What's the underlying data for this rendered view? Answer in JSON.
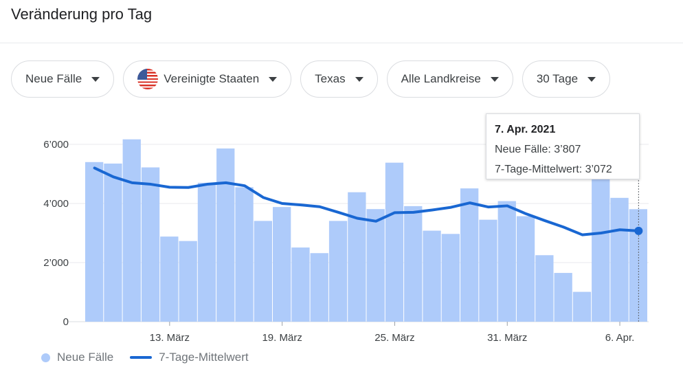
{
  "header": {
    "title": "Veränderung pro Tag"
  },
  "filters": [
    {
      "label": "Neue Fälle",
      "icon": "chevron-down-icon"
    },
    {
      "label": "Vereinigte Staaten",
      "icon": "us-flag-icon"
    },
    {
      "label": "Texas",
      "icon": "chevron-down-icon"
    },
    {
      "label": "Alle Landkreise",
      "icon": "chevron-down-icon"
    },
    {
      "label": "30 Tage",
      "icon": "chevron-down-icon"
    }
  ],
  "tooltip": {
    "date": "7. Apr. 2021",
    "cases": "Neue Fälle: 3’807",
    "avg": "7-Tage-Mittelwert: 3’072"
  },
  "legend": {
    "bars": "Neue Fälle",
    "line": "7-Tage-Mittelwert"
  },
  "colors": {
    "bar": "#aecbfa",
    "line": "#1967d2",
    "grid": "#e8eaed"
  },
  "chart_data": {
    "type": "bar",
    "title": "Veränderung pro Tag",
    "xlabel": "",
    "ylabel": "",
    "ylim": [
      0,
      6500
    ],
    "y_ticks": [
      0,
      2000,
      4000,
      6000
    ],
    "y_tick_labels": [
      "0",
      "2’000",
      "4’000",
      "6’000"
    ],
    "x_tick_labels": [
      {
        "label": "13. März",
        "index": 4.5
      },
      {
        "label": "19. März",
        "index": 10.5
      },
      {
        "label": "25. März",
        "index": 16.5
      },
      {
        "label": "31. März",
        "index": 22.5
      },
      {
        "label": "6. Apr.",
        "index": 28.5
      }
    ],
    "grid": true,
    "legend_position": "bottom-left",
    "series": [
      {
        "name": "Neue Fälle",
        "type": "bar",
        "values": [
          5400,
          5350,
          6170,
          5220,
          2880,
          2730,
          4700,
          5860,
          4550,
          3410,
          3880,
          2510,
          2320,
          3410,
          4380,
          3810,
          5380,
          3910,
          3080,
          2970,
          4510,
          3450,
          4080,
          3570,
          2250,
          1650,
          1010,
          4840,
          4190,
          3807
        ]
      },
      {
        "name": "7-Tage-Mittelwert",
        "type": "line",
        "values": [
          5200,
          4900,
          4700,
          4650,
          4550,
          4540,
          4650,
          4700,
          4600,
          4200,
          4000,
          3950,
          3890,
          3700,
          3500,
          3400,
          3690,
          3700,
          3780,
          3870,
          4020,
          3880,
          3920,
          3650,
          3420,
          3200,
          2940,
          3000,
          3110,
          3072
        ]
      }
    ]
  }
}
